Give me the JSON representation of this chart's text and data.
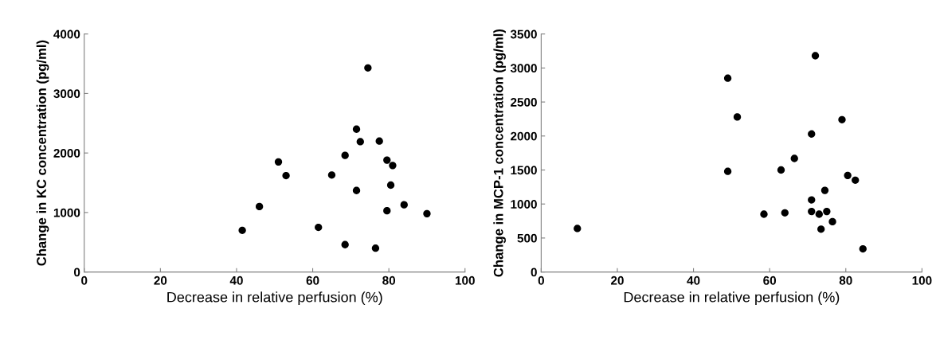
{
  "chart_data": [
    {
      "type": "scatter",
      "xlabel": "Decrease in relative perfusion (%)",
      "ylabel": "Change in KC concentration (pg/ml)",
      "marker": "circle",
      "grid": false,
      "legend": false,
      "xlim": [
        0,
        100
      ],
      "xticks": [
        0,
        20,
        40,
        60,
        80,
        100
      ],
      "ylim": [
        0,
        4000
      ],
      "yticks": [
        0,
        1000,
        2000,
        3000,
        4000
      ],
      "series": [
        {
          "color": "#000000",
          "x": [
            41.5,
            46,
            51,
            53,
            61.5,
            65,
            68.5,
            68.5,
            71.5,
            71.5,
            72.5,
            74.5,
            76.5,
            77.5,
            79.5,
            79.5,
            80.5,
            81,
            84,
            90
          ],
          "values": [
            700,
            1100,
            1850,
            1620,
            750,
            1630,
            1960,
            460,
            2400,
            1370,
            2190,
            3430,
            400,
            2200,
            1880,
            1030,
            1460,
            1790,
            1130,
            980
          ]
        }
      ]
    },
    {
      "type": "scatter",
      "xlabel": "Decrease in relative perfusion (%)",
      "ylabel": "Change in MCP-1 concentration (pg/ml)",
      "marker": "circle",
      "grid": false,
      "legend": false,
      "xlim": [
        0,
        100
      ],
      "xticks": [
        0,
        20,
        40,
        60,
        80,
        100
      ],
      "ylim": [
        0,
        3500
      ],
      "yticks": [
        0,
        500,
        1000,
        1500,
        2000,
        2500,
        3000,
        3500
      ],
      "series": [
        {
          "color": "#000000",
          "x": [
            9.5,
            49,
            49,
            51.5,
            58.5,
            63,
            64,
            66.5,
            71,
            71,
            71,
            73,
            73.5,
            74.5,
            75,
            76.5,
            79,
            80.5,
            82.5,
            84.5,
            72
          ],
          "values": [
            640,
            2850,
            1480,
            2280,
            850,
            1500,
            870,
            1670,
            2030,
            1060,
            890,
            850,
            630,
            1200,
            890,
            740,
            2240,
            1420,
            1350,
            340,
            3180
          ]
        }
      ]
    }
  ]
}
